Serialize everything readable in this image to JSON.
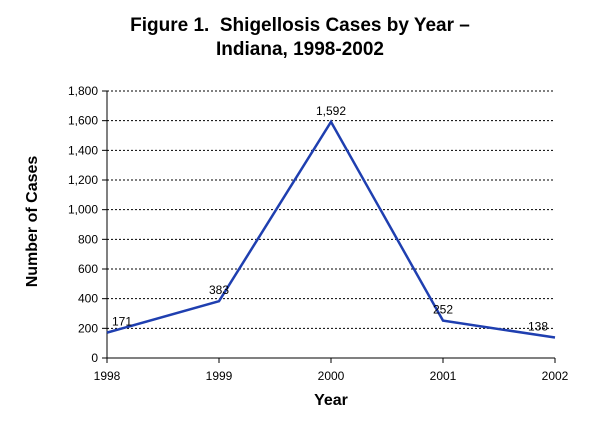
{
  "chart_data": {
    "type": "line",
    "title": [
      "Figure 1.  Shigellosis Cases by Year –",
      "Indiana, 1998-2002"
    ],
    "xlabel": "Year",
    "ylabel": "Number of Cases",
    "categories": [
      "1998",
      "1999",
      "2000",
      "2001",
      "2002"
    ],
    "series": [
      {
        "name": "Shigellosis Cases",
        "values": [
          171,
          383,
          1592,
          252,
          138
        ],
        "data_labels": [
          "171",
          "383",
          "1,592",
          "252",
          "138"
        ]
      }
    ],
    "ylim": [
      0,
      1800
    ],
    "yticks": [
      0,
      200,
      400,
      600,
      800,
      1000,
      1200,
      1400,
      1600,
      1800
    ],
    "ytick_labels": [
      "0",
      "200",
      "400",
      "600",
      "800",
      "1,000",
      "1,200",
      "1,400",
      "1,600",
      "1,800"
    ],
    "grid": true,
    "line_color": "#1f3fb0"
  }
}
